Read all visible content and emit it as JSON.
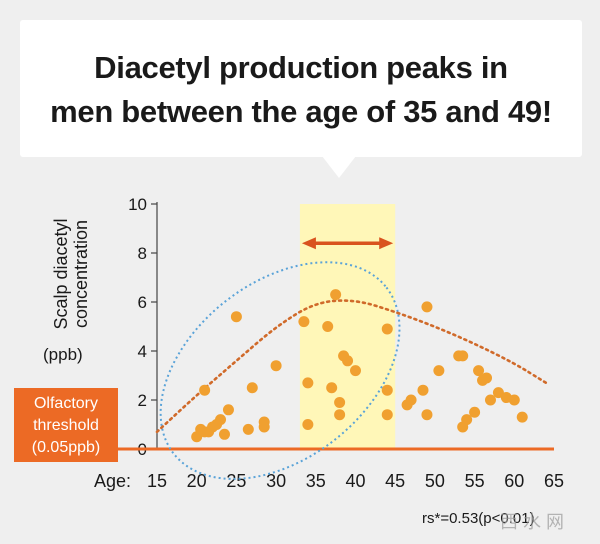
{
  "headline": {
    "line1": "Diacetyl production peaks in",
    "line2": "men between the age of 35 and 49!"
  },
  "chart_data": {
    "type": "scatter",
    "title": "Diacetyl production peaks in men between the age of 35 and 49!",
    "ylabel_line1": "Scalp diacetyl",
    "ylabel_line2": "concentration",
    "ylabel_unit": "(ppb)",
    "xlabel": "Age:",
    "xlim": [
      15,
      65
    ],
    "ylim": [
      0,
      10
    ],
    "x_ticks": [
      15,
      20,
      25,
      30,
      35,
      40,
      45,
      50,
      55,
      60,
      65
    ],
    "y_ticks": [
      0,
      2,
      4,
      6,
      8,
      10
    ],
    "highlight_range": [
      33,
      45
    ],
    "threshold": {
      "value": 0,
      "label_line1": "Olfactory",
      "label_line2": "threshold",
      "label_line3": "(0.05ppb)"
    },
    "statistic": "rs*=0.53(p<0.01)",
    "points": [
      {
        "x": 20,
        "y": 0.5
      },
      {
        "x": 20.5,
        "y": 0.8
      },
      {
        "x": 21,
        "y": 2.4
      },
      {
        "x": 21,
        "y": 0.7
      },
      {
        "x": 21.5,
        "y": 0.7
      },
      {
        "x": 22,
        "y": 0.9
      },
      {
        "x": 22.5,
        "y": 1.0
      },
      {
        "x": 23,
        "y": 1.2
      },
      {
        "x": 23.5,
        "y": 0.6
      },
      {
        "x": 24,
        "y": 1.6
      },
      {
        "x": 25,
        "y": 5.4
      },
      {
        "x": 26.5,
        "y": 0.8
      },
      {
        "x": 27,
        "y": 2.5
      },
      {
        "x": 28.5,
        "y": 1.1
      },
      {
        "x": 28.5,
        "y": 0.9
      },
      {
        "x": 30,
        "y": 3.4
      },
      {
        "x": 33.5,
        "y": 5.2
      },
      {
        "x": 34,
        "y": 2.7
      },
      {
        "x": 34,
        "y": 1.0
      },
      {
        "x": 36.5,
        "y": 5.0
      },
      {
        "x": 37,
        "y": 2.5
      },
      {
        "x": 37.5,
        "y": 6.3
      },
      {
        "x": 38,
        "y": 1.4
      },
      {
        "x": 38,
        "y": 1.9
      },
      {
        "x": 38.5,
        "y": 3.8
      },
      {
        "x": 39,
        "y": 3.6
      },
      {
        "x": 40,
        "y": 3.2
      },
      {
        "x": 44,
        "y": 4.9
      },
      {
        "x": 44,
        "y": 2.4
      },
      {
        "x": 44,
        "y": 1.4
      },
      {
        "x": 46.5,
        "y": 1.8
      },
      {
        "x": 47,
        "y": 2.0
      },
      {
        "x": 48.5,
        "y": 2.4
      },
      {
        "x": 49,
        "y": 1.4
      },
      {
        "x": 49,
        "y": 5.8
      },
      {
        "x": 50.5,
        "y": 3.2
      },
      {
        "x": 53,
        "y": 3.8
      },
      {
        "x": 53.5,
        "y": 3.8
      },
      {
        "x": 53.5,
        "y": 0.9
      },
      {
        "x": 54,
        "y": 1.2
      },
      {
        "x": 55,
        "y": 1.5
      },
      {
        "x": 55.5,
        "y": 3.2
      },
      {
        "x": 56,
        "y": 2.8
      },
      {
        "x": 56.5,
        "y": 2.9
      },
      {
        "x": 57,
        "y": 2.0
      },
      {
        "x": 58,
        "y": 2.3
      },
      {
        "x": 59,
        "y": 2.1
      },
      {
        "x": 60,
        "y": 2.0
      },
      {
        "x": 61,
        "y": 1.3
      }
    ],
    "trend_line": [
      {
        "x": 15,
        "y": 0.7
      },
      {
        "x": 20,
        "y": 2.2
      },
      {
        "x": 25,
        "y": 3.6
      },
      {
        "x": 30,
        "y": 5.0
      },
      {
        "x": 35,
        "y": 6.0
      },
      {
        "x": 40,
        "y": 6.1
      },
      {
        "x": 45,
        "y": 5.6
      },
      {
        "x": 50,
        "y": 5.0
      },
      {
        "x": 55,
        "y": 4.3
      },
      {
        "x": 60,
        "y": 3.5
      },
      {
        "x": 64,
        "y": 2.7
      }
    ],
    "colors": {
      "point": "#f0a030",
      "trend": "#d06a2a",
      "highlight": "#fff7b8",
      "threshold": "#ec6a25",
      "ellipse": "#5aa3d8",
      "arrow": "#d9531e",
      "axis": "#444444"
    }
  },
  "watermark": "西 水 网"
}
